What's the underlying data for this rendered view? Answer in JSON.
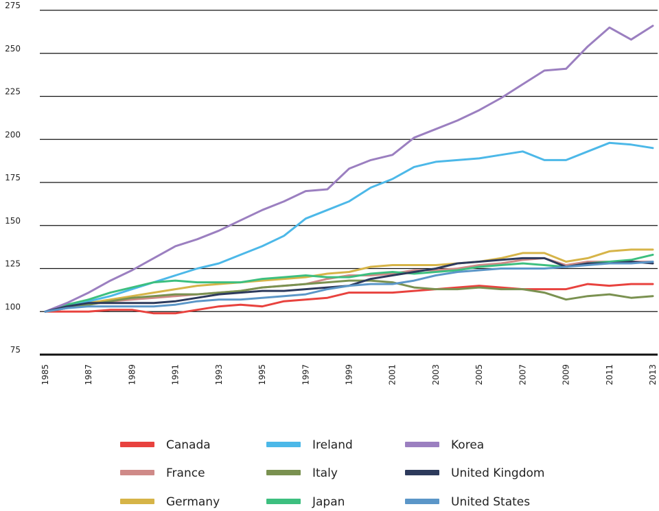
{
  "chart_data": {
    "type": "line",
    "title": "",
    "xlabel": "",
    "ylabel": "",
    "ylim": [
      75,
      275
    ],
    "yticks": [
      75,
      100,
      125,
      150,
      175,
      200,
      225,
      250,
      275
    ],
    "x": [
      1985,
      1986,
      1987,
      1988,
      1989,
      1990,
      1991,
      1992,
      1993,
      1994,
      1995,
      1996,
      1997,
      1998,
      1999,
      2000,
      2001,
      2002,
      2003,
      2004,
      2005,
      2006,
      2007,
      2008,
      2009,
      2010,
      2011,
      2012,
      2013
    ],
    "xticks": [
      1985,
      1987,
      1989,
      1991,
      1993,
      1995,
      1997,
      1999,
      2001,
      2003,
      2005,
      2007,
      2009,
      2011,
      2013
    ],
    "grid": true,
    "legend_position": "bottom",
    "series": [
      {
        "name": "Canada",
        "color": "#e8423e",
        "values": [
          100,
          100,
          100,
          101,
          101,
          99,
          99,
          101,
          103,
          104,
          103,
          106,
          107,
          108,
          111,
          111,
          111,
          112,
          113,
          114,
          115,
          114,
          113,
          113,
          113,
          116,
          115,
          116,
          116
        ]
      },
      {
        "name": "France",
        "color": "#cf8a88",
        "values": [
          100,
          102,
          104,
          106,
          107,
          108,
          109,
          110,
          111,
          112,
          114,
          115,
          116,
          119,
          121,
          121,
          122,
          124,
          124,
          125,
          127,
          128,
          130,
          131,
          127,
          129,
          129,
          129,
          129
        ]
      },
      {
        "name": "Germany",
        "color": "#d6b448",
        "values": [
          100,
          103,
          105,
          107,
          109,
          111,
          113,
          115,
          116,
          117,
          118,
          119,
          120,
          122,
          123,
          126,
          127,
          127,
          127,
          128,
          129,
          131,
          134,
          134,
          129,
          131,
          135,
          136,
          136
        ]
      },
      {
        "name": "Ireland",
        "color": "#4cb8e8",
        "values": [
          100,
          103,
          106,
          109,
          113,
          117,
          121,
          125,
          128,
          133,
          138,
          144,
          154,
          159,
          164,
          172,
          177,
          184,
          187,
          188,
          189,
          191,
          193,
          188,
          188,
          193,
          198,
          197,
          195
        ]
      },
      {
        "name": "Italy",
        "color": "#7a9150",
        "values": [
          100,
          102,
          104,
          106,
          108,
          109,
          110,
          110,
          111,
          112,
          114,
          115,
          116,
          117,
          118,
          118,
          117,
          114,
          113,
          113,
          114,
          113,
          113,
          111,
          107,
          109,
          110,
          108,
          109
        ]
      },
      {
        "name": "Japan",
        "color": "#3dbf7f",
        "values": [
          100,
          104,
          107,
          111,
          114,
          117,
          118,
          117,
          117,
          117,
          119,
          120,
          121,
          120,
          120,
          122,
          123,
          122,
          123,
          124,
          126,
          127,
          128,
          127,
          126,
          128,
          129,
          130,
          133
        ]
      },
      {
        "name": "Korea",
        "color": "#9b7fc0",
        "values": [
          100,
          105,
          111,
          118,
          124,
          131,
          138,
          142,
          147,
          153,
          159,
          164,
          170,
          171,
          183,
          188,
          191,
          201,
          206,
          211,
          217,
          224,
          232,
          240,
          241,
          254,
          265,
          258,
          266
        ]
      },
      {
        "name": "United Kingdom",
        "color": "#2d3a5c",
        "values": [
          100,
          103,
          105,
          105,
          105,
          105,
          106,
          108,
          110,
          111,
          112,
          112,
          113,
          114,
          115,
          119,
          121,
          123,
          125,
          128,
          129,
          130,
          131,
          131,
          126,
          128,
          128,
          129,
          128
        ]
      },
      {
        "name": "United States",
        "color": "#5b96c8",
        "values": [
          100,
          102,
          103,
          103,
          103,
          103,
          104,
          106,
          107,
          107,
          108,
          109,
          110,
          113,
          115,
          116,
          116,
          118,
          121,
          123,
          124,
          125,
          125,
          125,
          126,
          127,
          128,
          128,
          129
        ]
      }
    ]
  }
}
